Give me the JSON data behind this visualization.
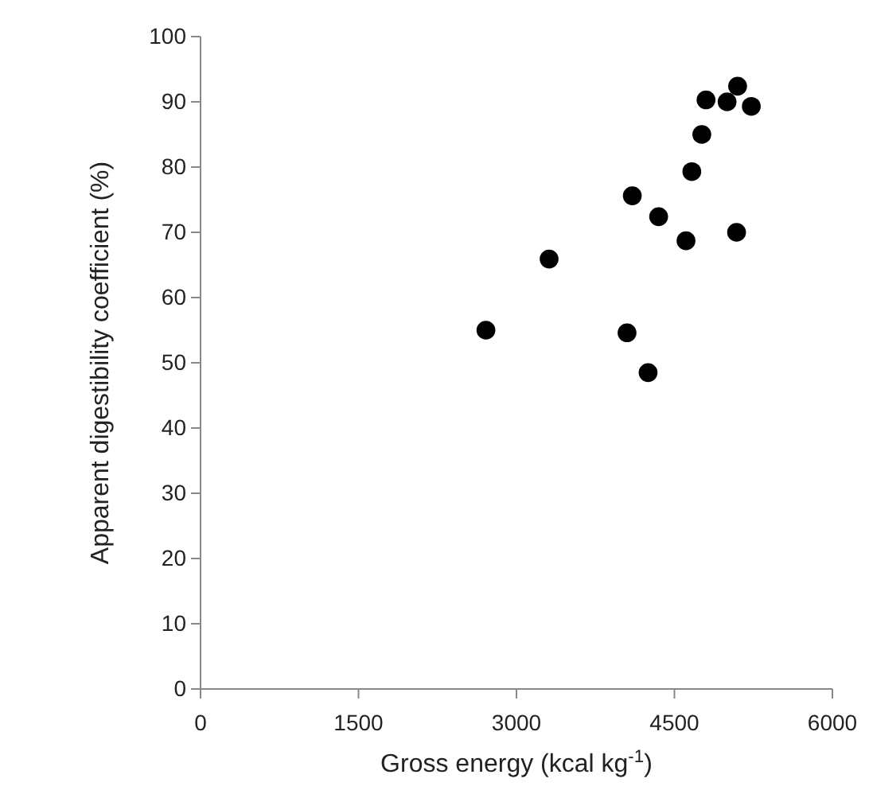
{
  "chart_data": {
    "type": "scatter",
    "xlabel": "Gross energy (kcal kg$^{-1}$)",
    "ylabel": "Apparent digestibility coefficient (%)",
    "x": [
      2710,
      3310,
      4050,
      4250,
      4100,
      4350,
      4610,
      5090,
      4665,
      4760,
      4800,
      5000,
      5100,
      5230
    ],
    "series": [
      {
        "color": "#000000",
        "values": [
          55,
          65.9,
          54.6,
          48.5,
          75.6,
          72.4,
          68.7,
          70,
          79.3,
          85,
          90.3,
          90,
          92.4,
          89.3
        ]
      }
    ],
    "xlim": [
      0,
      6000
    ],
    "xticks": [
      0,
      1500,
      3000,
      4500,
      6000
    ],
    "ylim": [
      0,
      100
    ],
    "yticks": [
      0,
      10,
      20,
      30,
      40,
      50,
      60,
      70,
      80,
      90,
      100
    ],
    "marker": "circle",
    "grid": false
  }
}
